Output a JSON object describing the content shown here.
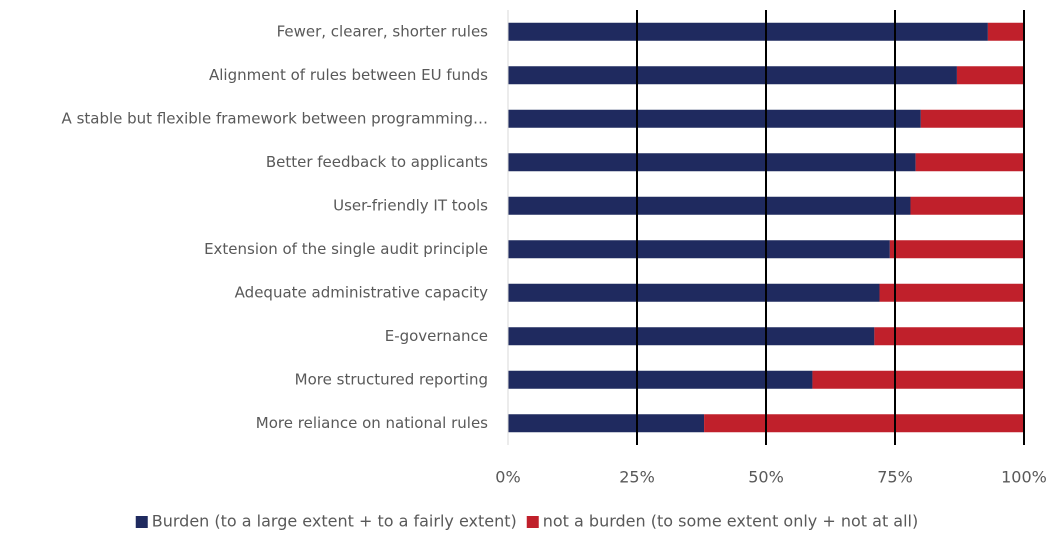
{
  "chart_data": {
    "type": "stacked_barh",
    "categories": [
      "Fewer, clearer, shorter rules",
      "Alignment of rules between EU funds",
      "A stable but flexible framework between programming…",
      "Better feedback to applicants",
      "User-friendly IT tools",
      "Extension of the single audit principle",
      "Adequate administrative capacity",
      "E-governance",
      "More structured reporting",
      "More reliance on national rules"
    ],
    "series": [
      {
        "name": "Burden (to a large extent + to a fairly extent)",
        "color": "#1f2a5f",
        "values": [
          93,
          87,
          80,
          79,
          78,
          74,
          72,
          71,
          59,
          38
        ]
      },
      {
        "name": "not a burden (to some extent only + not at all)",
        "color": "#c0202b",
        "values": [
          7,
          13,
          20,
          21,
          22,
          26,
          28,
          29,
          41,
          62
        ]
      }
    ],
    "xlim": [
      0,
      100
    ],
    "xticks": [
      {
        "value": 0,
        "label": "0%"
      },
      {
        "value": 25,
        "label": "25%"
      },
      {
        "value": 50,
        "label": "50%"
      },
      {
        "value": 75,
        "label": "75%"
      },
      {
        "value": 100,
        "label": "100%"
      }
    ],
    "grid": true,
    "legend": "bottom"
  }
}
